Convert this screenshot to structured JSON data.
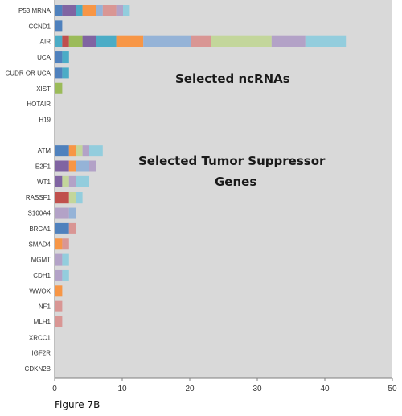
{
  "caption": "Figure 7B",
  "colors": {
    "plot_background": "#d9d9d9",
    "palette": [
      "#4f81bd",
      "#8064a2",
      "#c0504d",
      "#9bbb59",
      "#4bacc6",
      "#f79646",
      "#95b3d7",
      "#d99694",
      "#c3d69b",
      "#b3a2c7",
      "#93cddd"
    ]
  },
  "chart_data": {
    "type": "bar",
    "orientation": "horizontal",
    "stacked": true,
    "xlim": [
      0,
      50
    ],
    "xticks": [
      "0",
      "10",
      "20",
      "30",
      "40",
      "50"
    ],
    "grid": false,
    "legend": "none",
    "annotations": [
      {
        "text": "Selected ncRNAs"
      },
      {
        "text": "Selected Tumor Suppressor"
      },
      {
        "text": "Genes"
      }
    ],
    "categories": [
      "P53 MRNA",
      "CCND1",
      "AIR",
      "UCA",
      "CUDR OR UCA",
      "XIST",
      "HOTAIR",
      "H19",
      "",
      "ATM",
      "E2F1",
      "WT1",
      "RASSF1",
      "S100A4",
      "BRCA1",
      "SMAD4",
      "MGMT",
      "CDH1",
      "WWOX",
      "NF1",
      "MLH1",
      "XRCC1",
      "IGF2R",
      "CDKN2B"
    ],
    "bars": [
      [
        {
          "v": 1,
          "c": 0
        },
        {
          "v": 2,
          "c": 1
        },
        {
          "v": 1,
          "c": 4
        },
        {
          "v": 2,
          "c": 5
        },
        {
          "v": 1,
          "c": 6
        },
        {
          "v": 2,
          "c": 7
        },
        {
          "v": 1,
          "c": 9
        },
        {
          "v": 1,
          "c": 10
        }
      ],
      [
        {
          "v": 1,
          "c": 0
        }
      ],
      [
        {
          "v": 1,
          "c": 4
        },
        {
          "v": 1,
          "c": 2
        },
        {
          "v": 2,
          "c": 3
        },
        {
          "v": 2,
          "c": 1
        },
        {
          "v": 3,
          "c": 4
        },
        {
          "v": 4,
          "c": 5
        },
        {
          "v": 7,
          "c": 6
        },
        {
          "v": 3,
          "c": 7
        },
        {
          "v": 9,
          "c": 8
        },
        {
          "v": 5,
          "c": 9
        },
        {
          "v": 6,
          "c": 10
        }
      ],
      [
        {
          "v": 1,
          "c": 0
        },
        {
          "v": 1,
          "c": 4
        }
      ],
      [
        {
          "v": 1,
          "c": 0
        },
        {
          "v": 1,
          "c": 4
        }
      ],
      [
        {
          "v": 1,
          "c": 3
        }
      ],
      [],
      [],
      [],
      [
        {
          "v": 2,
          "c": 0
        },
        {
          "v": 1,
          "c": 5
        },
        {
          "v": 1,
          "c": 8
        },
        {
          "v": 1,
          "c": 9
        },
        {
          "v": 2,
          "c": 10
        }
      ],
      [
        {
          "v": 2,
          "c": 1
        },
        {
          "v": 1,
          "c": 5
        },
        {
          "v": 2,
          "c": 6
        },
        {
          "v": 1,
          "c": 9
        }
      ],
      [
        {
          "v": 1,
          "c": 1
        },
        {
          "v": 1,
          "c": 8
        },
        {
          "v": 1,
          "c": 9
        },
        {
          "v": 2,
          "c": 10
        }
      ],
      [
        {
          "v": 2,
          "c": 2
        },
        {
          "v": 1,
          "c": 8
        },
        {
          "v": 1,
          "c": 10
        }
      ],
      [
        {
          "v": 2,
          "c": 9
        },
        {
          "v": 1,
          "c": 6
        }
      ],
      [
        {
          "v": 2,
          "c": 0
        },
        {
          "v": 1,
          "c": 7
        }
      ],
      [
        {
          "v": 1,
          "c": 5
        },
        {
          "v": 1,
          "c": 7
        }
      ],
      [
        {
          "v": 1,
          "c": 9
        },
        {
          "v": 1,
          "c": 10
        }
      ],
      [
        {
          "v": 1,
          "c": 9
        },
        {
          "v": 1,
          "c": 10
        }
      ],
      [
        {
          "v": 1,
          "c": 5
        }
      ],
      [
        {
          "v": 1,
          "c": 7
        }
      ],
      [
        {
          "v": 1,
          "c": 7
        }
      ],
      [],
      [],
      []
    ]
  }
}
